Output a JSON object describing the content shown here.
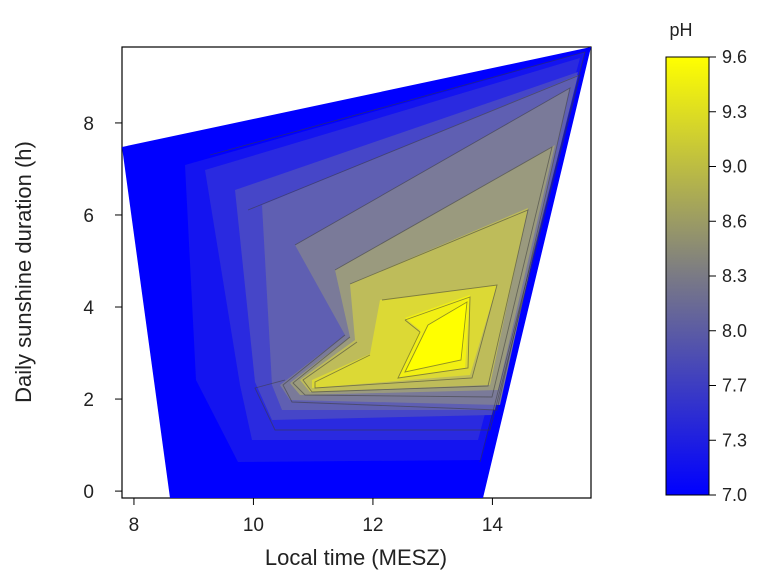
{
  "chart_data": {
    "type": "contour",
    "xlabel": "Local time (MESZ)",
    "ylabel": "Daily sunshine duration (h)",
    "xlim": [
      7.8,
      15.65
    ],
    "ylim": [
      -0.15,
      9.65
    ],
    "x_ticks": [
      "8",
      "10",
      "12",
      "14"
    ],
    "x_tick_values": [
      8,
      10,
      12,
      14
    ],
    "y_ticks": [
      "0",
      "2",
      "4",
      "6",
      "8"
    ],
    "y_tick_values": [
      0,
      2,
      4,
      6,
      8
    ],
    "colorbar": {
      "title": "pH",
      "labels": [
        "9.6",
        "9.3",
        "9.0",
        "8.6",
        "8.3",
        "8.0",
        "7.7",
        "7.3",
        "7.0"
      ],
      "min": 7.0,
      "max": 9.6,
      "colors": [
        "#0000ff",
        "#ffff00"
      ]
    },
    "data_hull": [
      [
        7.8,
        7.6
      ],
      [
        15.65,
        9.65
      ],
      [
        13.8,
        -0.15
      ],
      [
        8.6,
        -0.15
      ]
    ],
    "peak": {
      "x": 13.5,
      "y": 3.3,
      "value": 9.6
    }
  }
}
